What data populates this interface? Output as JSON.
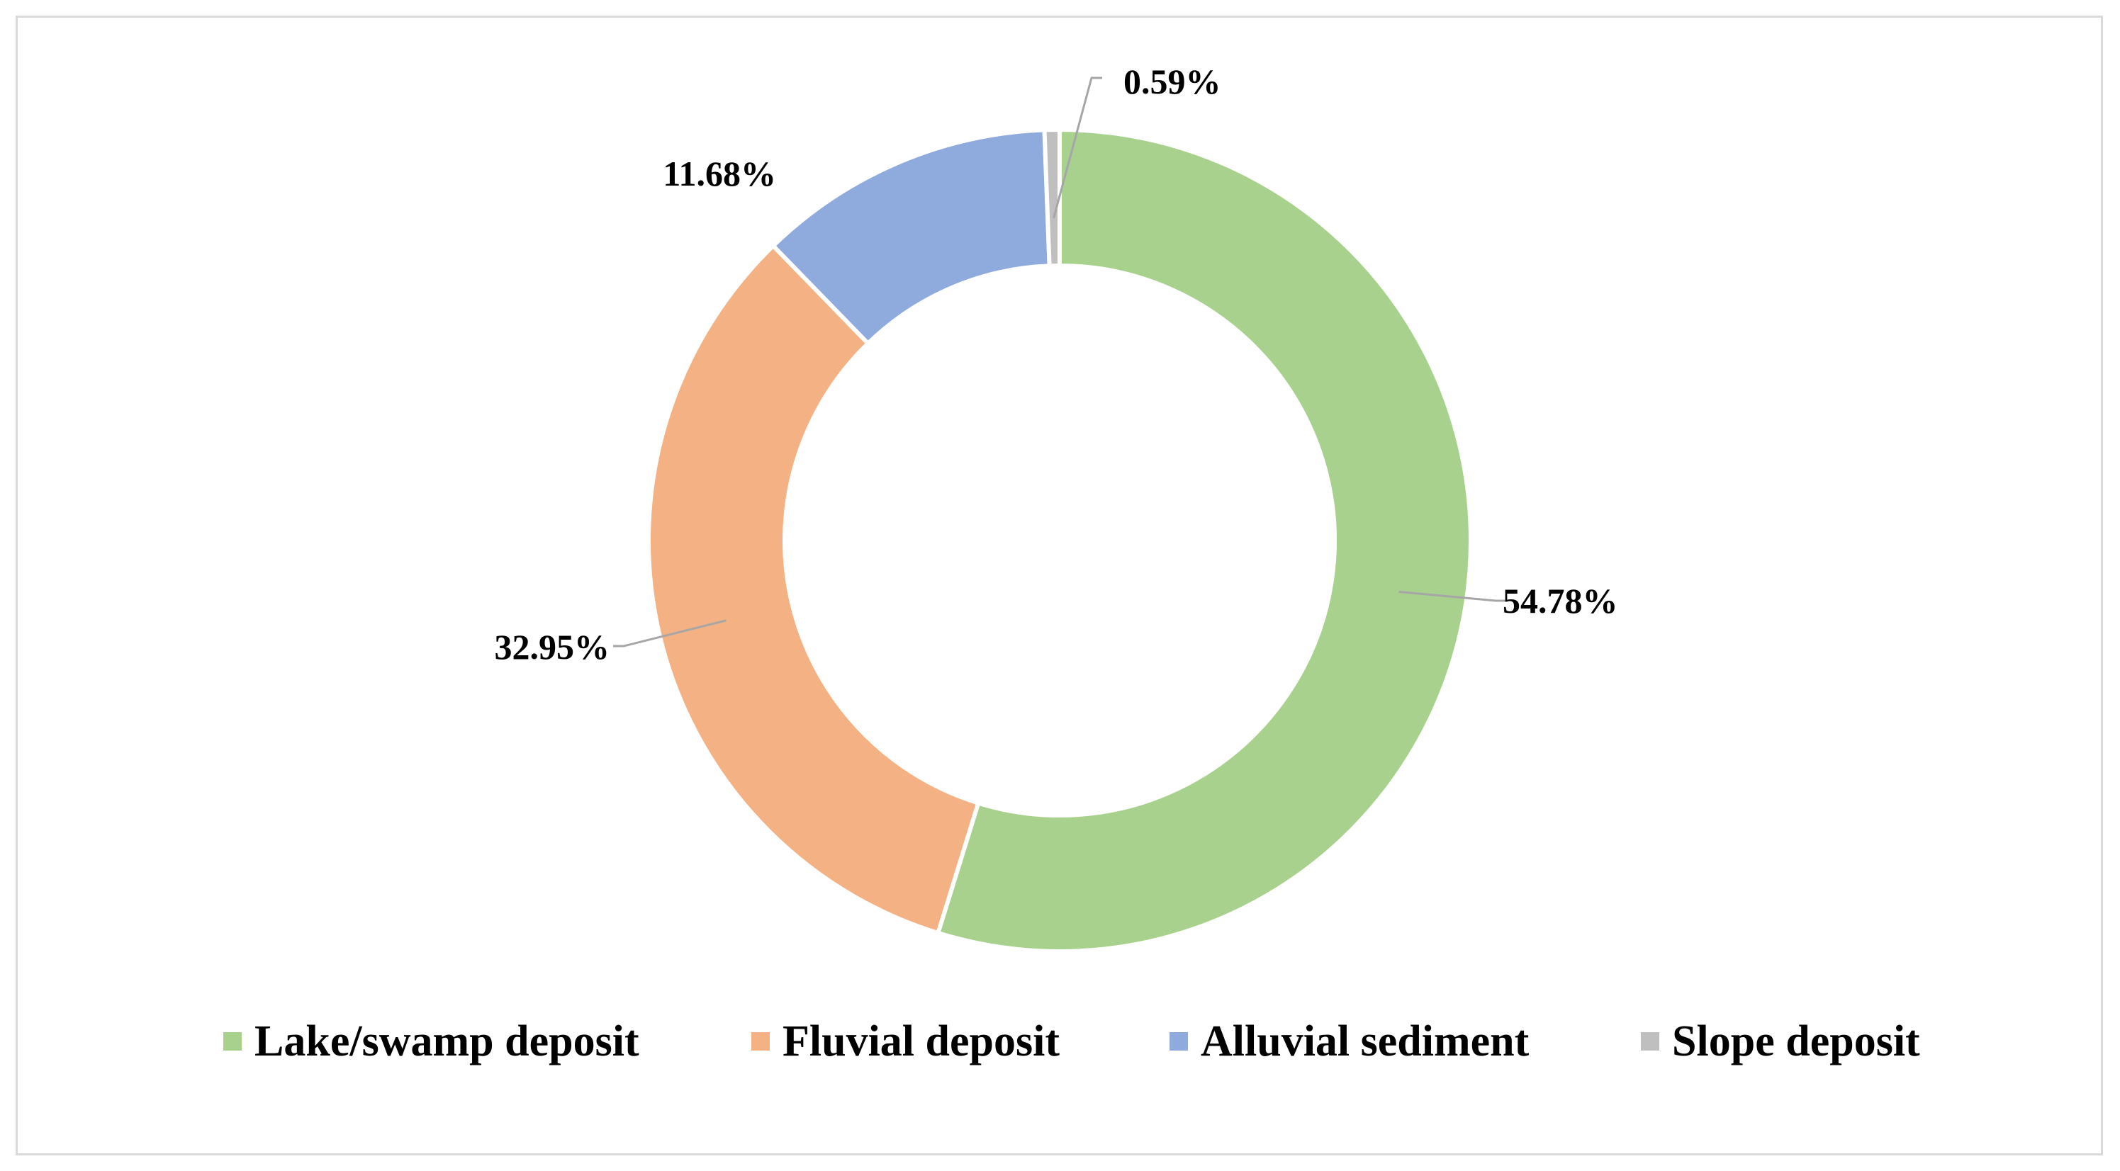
{
  "chart_data": {
    "type": "pie",
    "variant": "donut",
    "title": "",
    "legend_position": "bottom",
    "slices": [
      {
        "name": "Lake/swamp deposit",
        "value": 54.78,
        "label": "54.78%",
        "color": "#a9d18e"
      },
      {
        "name": "Fluvial deposit",
        "value": 32.95,
        "label": "32.95%",
        "color": "#f4b183"
      },
      {
        "name": "Alluvial sediment",
        "value": 11.68,
        "label": "11.68%",
        "color": "#8faadc"
      },
      {
        "name": "Slope deposit",
        "value": 0.59,
        "label": "0.59%",
        "color": "#bfbfbf"
      }
    ]
  }
}
